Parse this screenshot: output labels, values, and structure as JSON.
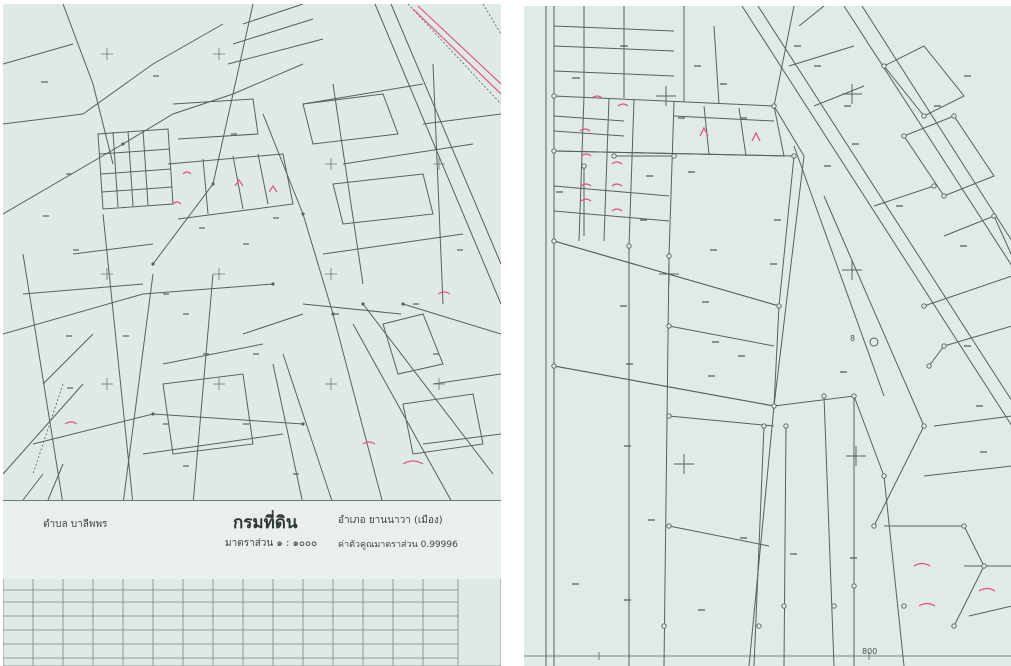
{
  "left_sheet": {
    "tambon": "ตำบล บาลีพพร",
    "department": "กรมที่ดิน",
    "amphoe": "อำเภอ ยานนาวา (เมือง)",
    "scale": "มาตราส่วน ๑ : ๑๐๐๐",
    "scale_factor": "ค่าตัวคูณมาตราส่วน 0.99996"
  },
  "right_sheet": {
    "marker_text": "8",
    "axis_tick": "800"
  },
  "colors": {
    "paper": "#dfeae6",
    "line": "#56615f",
    "annotation": "#e0557f"
  }
}
